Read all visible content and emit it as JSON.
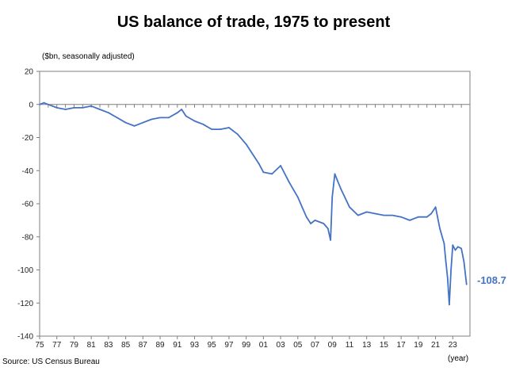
{
  "title": "US balance of trade, 1975 to present",
  "y_unit_label": "($bn, seasonally adjusted)",
  "x_unit_label": "(year)",
  "source": "Source: US Census Bureau",
  "end_value_label": "-108.7",
  "colors": {
    "series": "#4472c4",
    "axis": "#7f7f7f",
    "text": "#000000"
  },
  "chart_data": {
    "type": "line",
    "title": "US balance of trade, 1975 to present",
    "xlabel": "(year)",
    "ylabel": "($bn, seasonally adjusted)",
    "ylim": [
      -140,
      20
    ],
    "xlim": [
      1975,
      2025
    ],
    "y_ticks": [
      "20",
      "0",
      "-20",
      "-40",
      "-60",
      "-80",
      "-100",
      "-120",
      "-140"
    ],
    "x_ticks": [
      "75",
      "77",
      "79",
      "81",
      "83",
      "85",
      "87",
      "89",
      "91",
      "93",
      "95",
      "97",
      "99",
      "01",
      "03",
      "05",
      "07",
      "09",
      "11",
      "13",
      "15",
      "17",
      "19",
      "21",
      "23"
    ],
    "grid": false,
    "annotation": {
      "x": 2024.6,
      "y": -108.7,
      "text": "-108.7"
    },
    "series": [
      {
        "x": [
          1975,
          1975.5,
          1976,
          1977,
          1978,
          1979,
          1980,
          1981,
          1982,
          1983,
          1984,
          1985,
          1986,
          1986.5,
          1987,
          1988,
          1989,
          1990,
          1991,
          1991.5,
          1992,
          1993,
          1994,
          1995,
          1996,
          1997,
          1998,
          1999,
          2000,
          2000.5,
          2001,
          2002,
          2003,
          2004,
          2005,
          2005.5,
          2006,
          2006.5,
          2007,
          2008,
          2008.5,
          2008.8,
          2009,
          2009.3,
          2009.6,
          2010,
          2011,
          2012,
          2013,
          2014,
          2015,
          2016,
          2017,
          2018,
          2019,
          2020,
          2020.5,
          2021,
          2021.5,
          2022,
          2022.2,
          2022.4,
          2022.6,
          2022.8,
          2023,
          2023.3,
          2023.6,
          2024,
          2024.3,
          2024.6
        ],
        "values": [
          0,
          1,
          0,
          -2,
          -3,
          -2,
          -2,
          -1,
          -3,
          -5,
          -8,
          -11,
          -13,
          -12,
          -11,
          -9,
          -8,
          -8,
          -5,
          -3,
          -7,
          -10,
          -12,
          -15,
          -15,
          -14,
          -18,
          -24,
          -32,
          -36,
          -41,
          -42,
          -37,
          -47,
          -56,
          -62,
          -68,
          -72,
          -70,
          -72,
          -75,
          -82,
          -56,
          -42,
          -46,
          -51,
          -62,
          -67,
          -65,
          -66,
          -67,
          -67,
          -68,
          -70,
          -68,
          -68,
          -66,
          -62,
          -75,
          -84,
          -95,
          -105,
          -121,
          -100,
          -85,
          -88,
          -86,
          -87,
          -95,
          -108.7
        ]
      }
    ]
  }
}
